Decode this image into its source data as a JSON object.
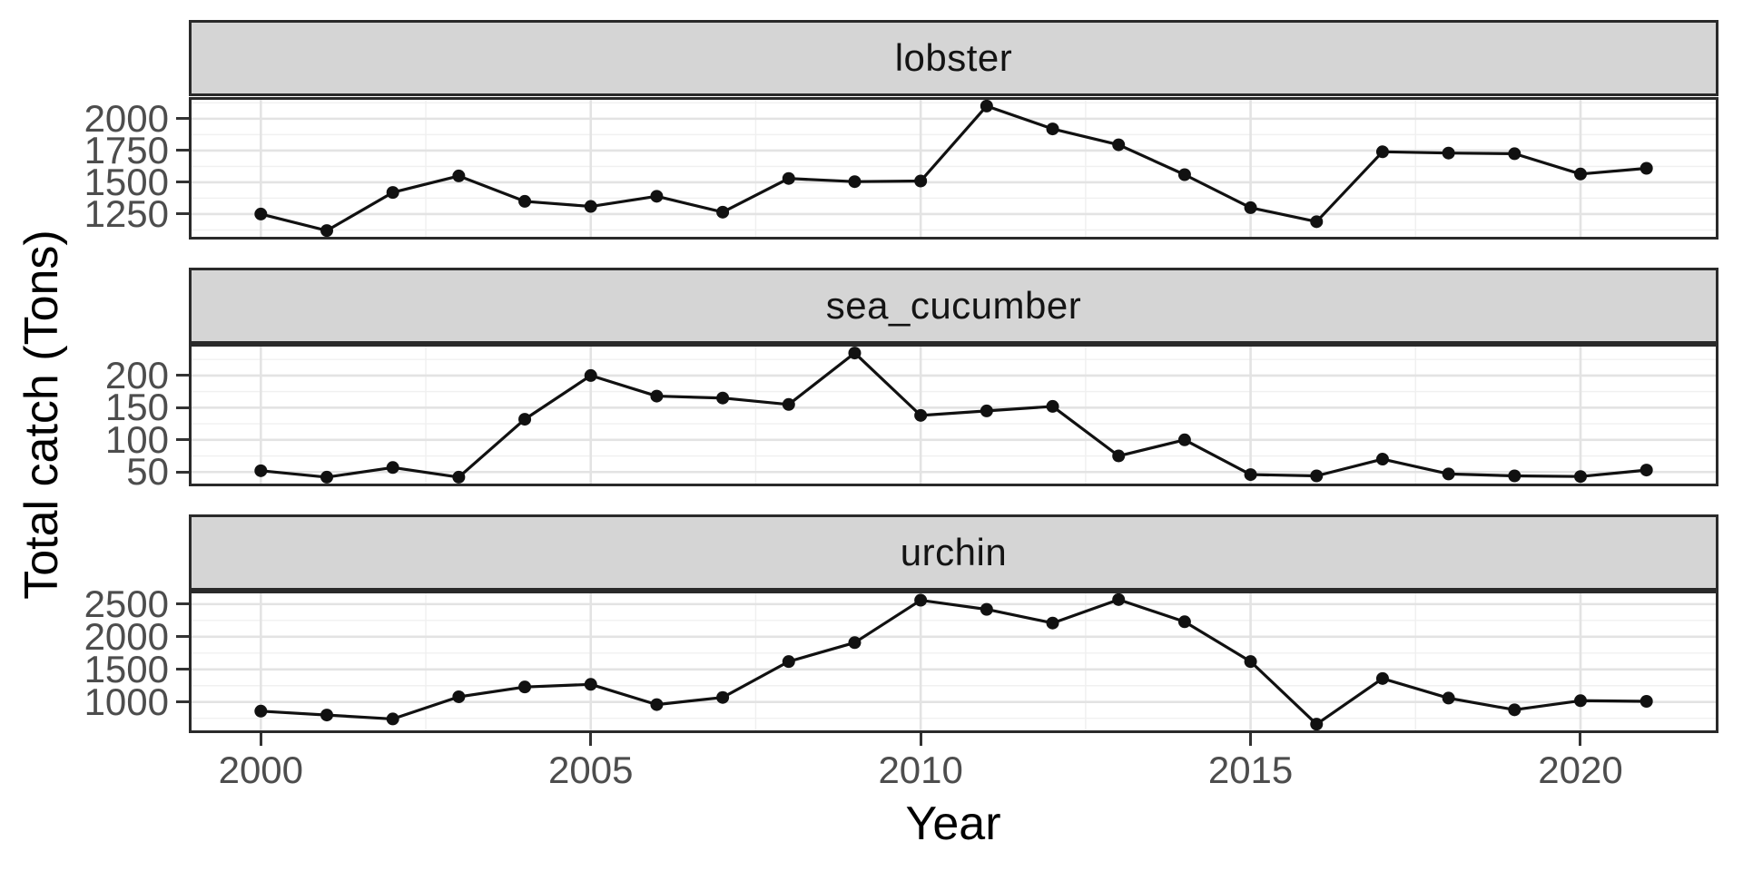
{
  "axes": {
    "x_label": "Year",
    "y_label": "Total catch (Tons)",
    "x_ticks": [
      2000,
      2005,
      2010,
      2015,
      2020
    ],
    "x_domain": [
      1998.95,
      2022.05
    ]
  },
  "colors": {
    "background": "#FFFFFF",
    "strip_bg": "#D5D5D5",
    "border": "#2A2A2A",
    "grid_major": "#E3E3E3",
    "grid_minor": "#F0F0F0",
    "tick_label": "#4D4D4D",
    "series": "#111111"
  },
  "chart_data": {
    "type": "line",
    "title": "",
    "xlabel": "Year",
    "ylabel": "Total catch (Tons)",
    "x": [
      2000,
      2001,
      2002,
      2003,
      2004,
      2005,
      2006,
      2007,
      2008,
      2009,
      2010,
      2011,
      2012,
      2013,
      2014,
      2015,
      2016,
      2017,
      2018,
      2019,
      2020,
      2021
    ],
    "grid": true,
    "legend": "none",
    "facets": [
      {
        "label": "lobster",
        "y_ticks": [
          1250,
          1500,
          1750,
          2000
        ],
        "y_domain": [
          1071,
          2149
        ],
        "values": [
          1250,
          1120,
          1420,
          1550,
          1350,
          1310,
          1390,
          1265,
          1530,
          1505,
          1510,
          2100,
          1920,
          1795,
          1560,
          1300,
          1190,
          1740,
          1730,
          1725,
          1565,
          1610
        ]
      },
      {
        "label": "sea_cucumber",
        "y_ticks": [
          50,
          100,
          150,
          200
        ],
        "y_domain": [
          32,
          245
        ],
        "values": [
          52,
          42,
          57,
          42,
          132,
          200,
          168,
          165,
          155,
          235,
          138,
          145,
          152,
          75,
          100,
          46,
          44,
          70,
          47,
          44,
          43,
          53
        ]
      },
      {
        "label": "urchin",
        "y_ticks": [
          1000,
          1500,
          2000,
          2500
        ],
        "y_domain": [
          565,
          2665
        ],
        "values": [
          860,
          800,
          740,
          1080,
          1230,
          1270,
          960,
          1070,
          1620,
          1910,
          2560,
          2420,
          2210,
          2570,
          2230,
          1620,
          660,
          1360,
          1060,
          880,
          1020,
          1010
        ]
      }
    ]
  }
}
